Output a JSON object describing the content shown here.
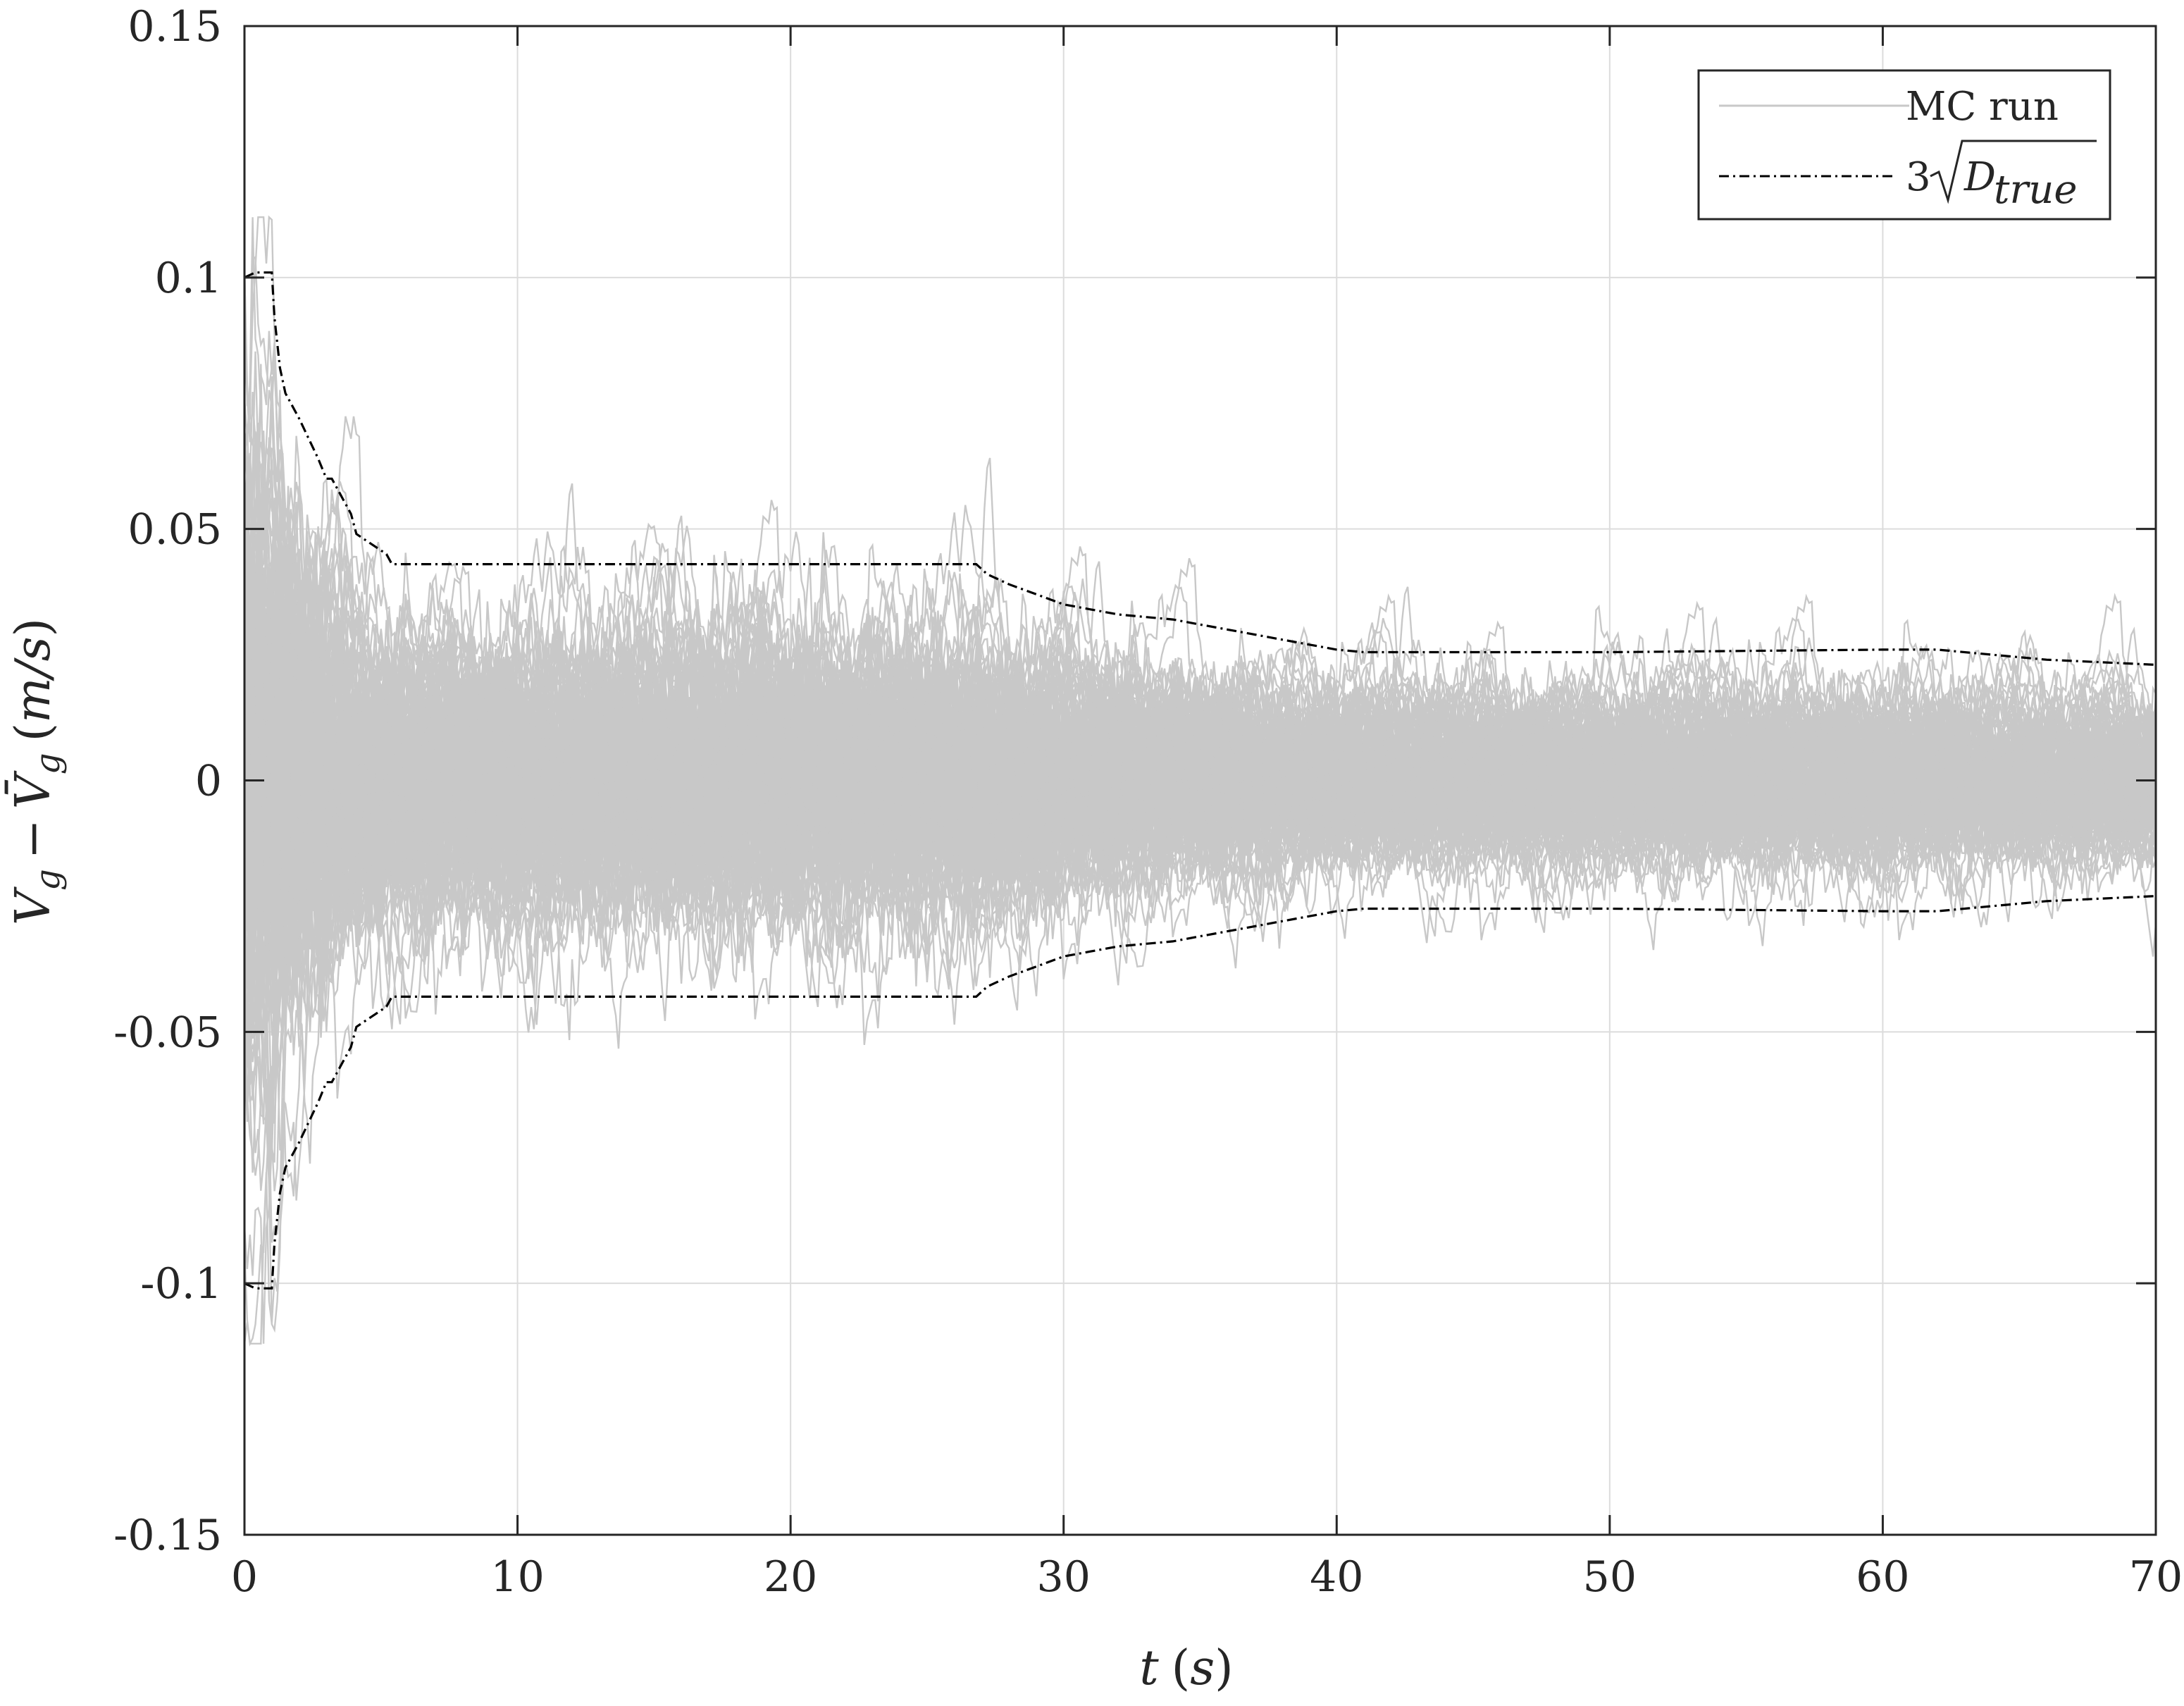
{
  "chart_data": {
    "type": "line",
    "title": "",
    "xlabel": {
      "var": "t",
      "unit": "s"
    },
    "ylabel": {
      "var": "V",
      "sub": "g",
      "minus": "−",
      "var_bar": "V̄",
      "sub2": "g",
      "unit": "m/s"
    },
    "xlim": [
      0,
      70
    ],
    "ylim": [
      -0.15,
      0.15
    ],
    "x_ticks": [
      0,
      10,
      20,
      30,
      40,
      50,
      60,
      70
    ],
    "x_tick_labels": [
      "0",
      "10",
      "20",
      "30",
      "40",
      "50",
      "60",
      "70"
    ],
    "y_ticks": [
      -0.15,
      -0.1,
      -0.05,
      0,
      0.05,
      0.1,
      0.15
    ],
    "y_tick_labels": [
      "-0.15",
      "-0.1",
      "-0.05",
      "0",
      "0.05",
      "0.1",
      "0.15"
    ],
    "grid": true,
    "legend_position": "top-right",
    "legend": {
      "mc_label": "MC run",
      "bound_label": {
        "coef": "3",
        "var": "D",
        "sub": "true"
      }
    },
    "colors": {
      "mc_run": "#c8c8c8",
      "bound": "#000000",
      "grid": "#dcdcdc",
      "axis": "#262626"
    },
    "series": [
      {
        "name": "MC run",
        "style": "solid",
        "envelope_3sigma": {
          "x": [
            0,
            1,
            2,
            3,
            4,
            5,
            27,
            30,
            33,
            36,
            38,
            40,
            62,
            65,
            70
          ],
          "y": [
            0.1,
            0.1,
            0.073,
            0.06,
            0.05,
            0.043,
            0.043,
            0.035,
            0.032,
            0.03,
            0.028,
            0.026,
            0.026,
            0.025,
            0.023
          ]
        },
        "note_runs": "many Monte Carlo runs"
      },
      {
        "name": "3√D_true",
        "style": "dash-dot",
        "upper": {
          "x": [
            0,
            0.4,
            1.0,
            1.1,
            1.3,
            1.5,
            2.0,
            2.7,
            3.0,
            3.2,
            3.9,
            4.1,
            5.2,
            5.4,
            8,
            12,
            18,
            24,
            26.8,
            27.2,
            28,
            29,
            30,
            31,
            32,
            33,
            34,
            35,
            36,
            37,
            38,
            39,
            40,
            41,
            50,
            60,
            62,
            64,
            66,
            68,
            70
          ],
          "y": [
            0.1,
            0.101,
            0.101,
            0.092,
            0.082,
            0.077,
            0.072,
            0.064,
            0.06,
            0.06,
            0.053,
            0.049,
            0.045,
            0.043,
            0.043,
            0.043,
            0.043,
            0.043,
            0.043,
            0.041,
            0.039,
            0.037,
            0.035,
            0.034,
            0.033,
            0.0325,
            0.032,
            0.031,
            0.03,
            0.029,
            0.028,
            0.027,
            0.026,
            0.0255,
            0.0255,
            0.026,
            0.026,
            0.025,
            0.024,
            0.0235,
            0.023
          ]
        },
        "lower": {
          "x": [
            0,
            0.4,
            1.0,
            1.1,
            1.3,
            1.5,
            2.0,
            2.7,
            3.0,
            3.2,
            3.9,
            4.1,
            5.2,
            5.4,
            8,
            12,
            18,
            24,
            26.8,
            27.2,
            28,
            29,
            30,
            31,
            32,
            33,
            34,
            35,
            36,
            37,
            38,
            39,
            40,
            41,
            50,
            60,
            62,
            64,
            66,
            68,
            70
          ],
          "y": [
            -0.1,
            -0.101,
            -0.101,
            -0.092,
            -0.082,
            -0.077,
            -0.072,
            -0.064,
            -0.06,
            -0.06,
            -0.053,
            -0.049,
            -0.045,
            -0.043,
            -0.043,
            -0.043,
            -0.043,
            -0.043,
            -0.043,
            -0.041,
            -0.039,
            -0.037,
            -0.035,
            -0.034,
            -0.033,
            -0.0325,
            -0.032,
            -0.031,
            -0.03,
            -0.029,
            -0.028,
            -0.027,
            -0.026,
            -0.0255,
            -0.0255,
            -0.026,
            -0.026,
            -0.025,
            -0.024,
            -0.0235,
            -0.023
          ]
        }
      }
    ]
  }
}
